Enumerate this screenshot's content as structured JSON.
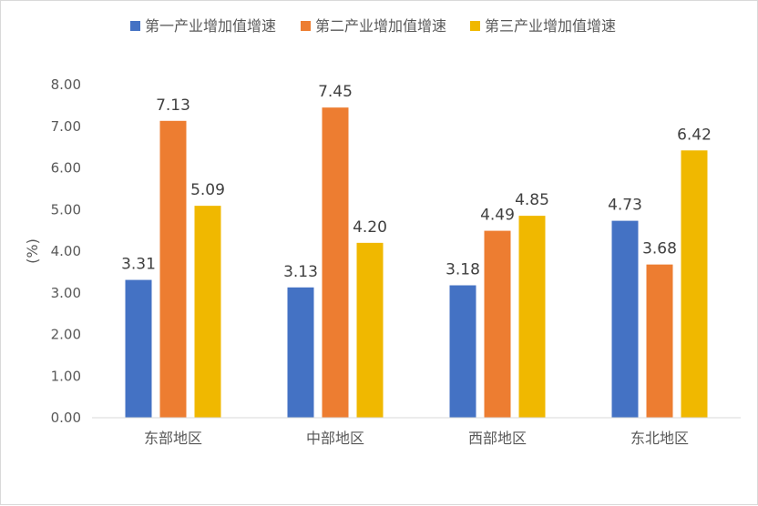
{
  "chart_data": {
    "type": "bar",
    "categories": [
      "东部地区",
      "中部地区",
      "西部地区",
      "东北地区"
    ],
    "series": [
      {
        "name": "第一产业增加值增速",
        "color": "#4472C4",
        "values": [
          3.31,
          3.13,
          3.18,
          4.73
        ]
      },
      {
        "name": "第二产业增加值增速",
        "color": "#ED7D31",
        "values": [
          7.13,
          7.45,
          4.49,
          3.68
        ]
      },
      {
        "name": "第三产业增加值增速",
        "color": "#F0B800",
        "values": [
          5.09,
          4.2,
          4.85,
          6.42
        ]
      }
    ],
    "data_labels": [
      [
        "3.31",
        "3.13",
        "3.18",
        "4.73"
      ],
      [
        "7.13",
        "7.45",
        "4.49",
        "3.68"
      ],
      [
        "5.09",
        "4.20",
        "4.85",
        "6.42"
      ]
    ],
    "ylabel": "(%)",
    "ylim": [
      0,
      8
    ],
    "yticks": [
      "0.00",
      "1.00",
      "2.00",
      "3.00",
      "4.00",
      "5.00",
      "6.00",
      "7.00",
      "8.00"
    ],
    "legend_position": "top",
    "grid": false
  }
}
